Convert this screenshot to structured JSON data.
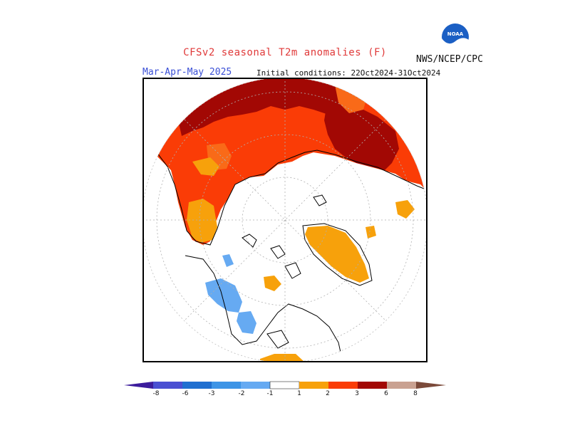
{
  "header": {
    "title": "CFSv2 seasonal T2m anomalies (F)",
    "season": "Mar-Apr-May 2025",
    "initial_conditions": "Initial conditions: 22Oct2024-31Oct2024",
    "agency": "NWS/NCEP/CPC",
    "logo_text": "NOAA"
  },
  "colors": {
    "neg8": "#3c1c9c",
    "neg6": "#4a4fd2",
    "neg3": "#1f6fd0",
    "neg2": "#3d94e6",
    "neg1": "#66aaf2",
    "neutral": "#ffffff",
    "pos1": "#f7a10b",
    "pos2": "#f96a18",
    "pos3": "#fa3c06",
    "pos6": "#a20804",
    "pos8": "#c9a191",
    "pos8plus": "#7b4a3a"
  },
  "legend": {
    "ticks": [
      "-8",
      "-6",
      "-3",
      "-2",
      "-1",
      "1",
      "2",
      "3",
      "6",
      "8"
    ]
  }
}
